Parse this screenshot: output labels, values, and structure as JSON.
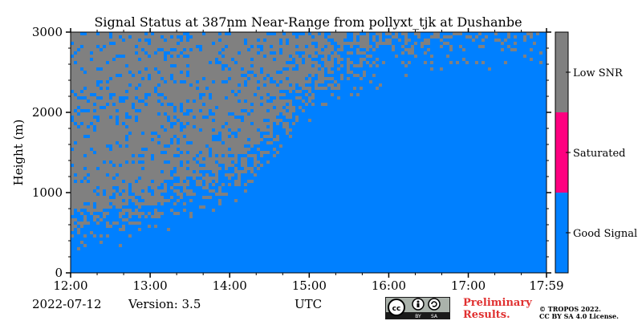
{
  "chart_data": {
    "type": "heatmap",
    "title": "Signal Status at 387nm Near-Range from pollyxt_tjk at Dushanbe",
    "xlabel": "UTC",
    "ylabel": "Height (m)",
    "x_ticks": [
      "12:00",
      "13:00",
      "14:00",
      "15:00",
      "16:00",
      "17:00",
      "17:59"
    ],
    "y_ticks": [
      "0",
      "1000",
      "2000",
      "3000"
    ],
    "xlim": [
      "12:00",
      "17:59"
    ],
    "ylim": [
      0,
      3000
    ],
    "categories": [
      {
        "label": "Good Signal",
        "color": "#0080ff"
      },
      {
        "label": "Saturated",
        "color": "#ff0080"
      },
      {
        "label": "Low SNR",
        "color": "#808080"
      }
    ],
    "low_snr_boundary": {
      "time": [
        "12:00",
        "13:00",
        "14:00",
        "14:30",
        "15:00",
        "15:30",
        "16:00",
        "17:00",
        "17:59"
      ],
      "height": [
        600,
        800,
        1200,
        1600,
        2200,
        2500,
        2700,
        2800,
        2900
      ]
    }
  },
  "footer": {
    "date": "2022-07-12",
    "version": "Version: 3.5",
    "preliminary": [
      "Preliminary",
      "Results."
    ],
    "copyright": [
      "© TROPOS 2022.",
      "CC BY SA 4.0 License."
    ],
    "cc_badge": [
      "BY",
      "SA"
    ]
  },
  "colors": {
    "good": "#0080ff",
    "saturated": "#ff0080",
    "low_snr": "#808080",
    "preliminary": "#e03030"
  }
}
